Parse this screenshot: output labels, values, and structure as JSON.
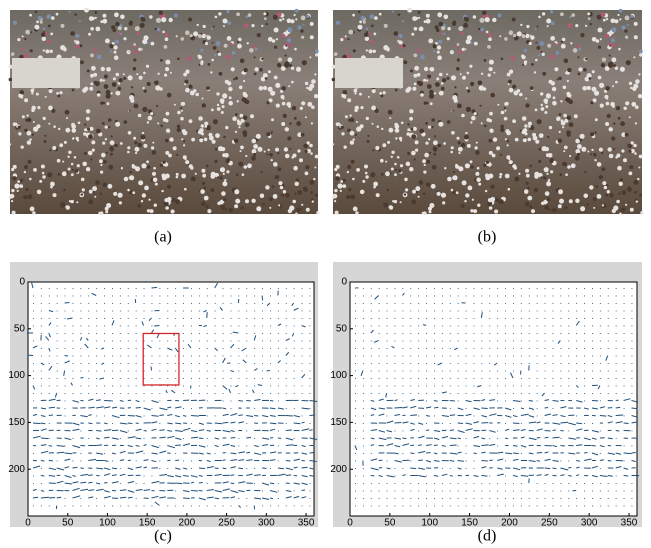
{
  "panels": [
    {
      "label": "(a)"
    },
    {
      "label": "(b)"
    }
  ],
  "chart_data": [
    {
      "type": "quiver",
      "label": "(c)",
      "color": "#1f4e79",
      "xlim": [
        0,
        360
      ],
      "ylim": [
        0,
        250
      ],
      "xticks": [
        0,
        50,
        100,
        150,
        200,
        250,
        300,
        350
      ],
      "yticks": [
        0,
        50,
        100,
        150,
        200
      ],
      "highlight": {
        "x": [
          145,
          190
        ],
        "y": [
          55,
          110
        ],
        "color": "#d62728"
      }
    },
    {
      "type": "quiver",
      "label": "(d)",
      "color": "#1f4e79",
      "xlim": [
        0,
        360
      ],
      "ylim": [
        0,
        250
      ],
      "xticks": [
        0,
        50,
        100,
        150,
        200,
        250,
        300,
        350
      ],
      "yticks": [
        0,
        50,
        100,
        150,
        200
      ]
    }
  ]
}
